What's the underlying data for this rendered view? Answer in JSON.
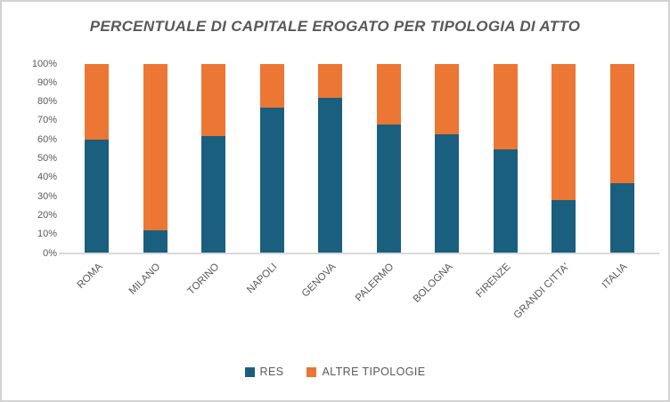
{
  "title": "PERCENTUALE DI CAPITALE EROGATO PER TIPOLOGIA DI ATTO",
  "colors": {
    "res": "#1B5F7F",
    "altre_tipologie": "#EC7633",
    "axis_line": "#D9D9D9",
    "text": "#595959"
  },
  "chart_data": {
    "type": "bar",
    "stacked": true,
    "percent_stacked": true,
    "title": "PERCENTUALE DI CAPITALE EROGATO PER TIPOLOGIA DI ATTO",
    "categories": [
      "ROMA",
      "MILANO",
      "TORINO",
      "NAPOLI",
      "GENOVA",
      "PALERMO",
      "BOLOGNA",
      "FIRENZE",
      "GRANDI CITTA'",
      "ITALIA"
    ],
    "series": [
      {
        "name": "RES",
        "color": "#1B5F7F",
        "values": [
          60,
          12,
          62,
          77,
          82,
          68,
          63,
          55,
          28,
          37
        ]
      },
      {
        "name": "ALTRE TIPOLOGIE",
        "color": "#EC7633",
        "values": [
          40,
          88,
          38,
          23,
          18,
          32,
          37,
          45,
          72,
          63
        ]
      }
    ],
    "xlabel": "",
    "ylabel": "",
    "ylim": [
      0,
      100
    ],
    "yticks": [
      "0%",
      "10%",
      "20%",
      "30%",
      "40%",
      "50%",
      "60%",
      "70%",
      "80%",
      "90%",
      "100%"
    ],
    "grid": false,
    "legend_position": "bottom"
  },
  "legend": {
    "items": [
      {
        "label": "RES"
      },
      {
        "label": "ALTRE TIPOLOGIE"
      }
    ]
  }
}
